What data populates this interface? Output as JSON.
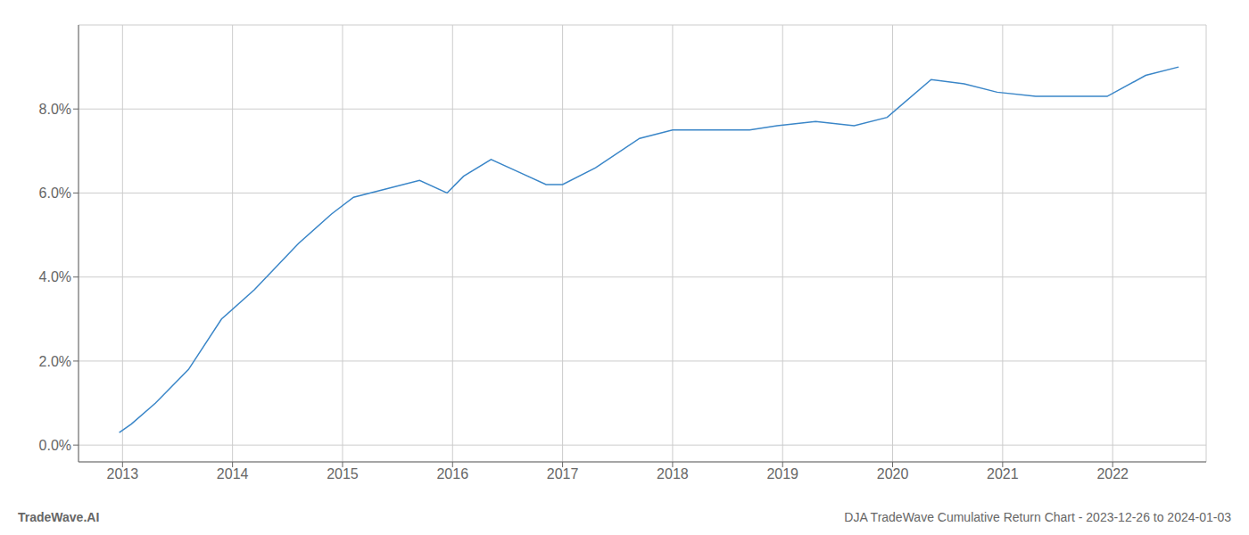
{
  "chart_data": {
    "type": "line",
    "x": [
      2012.97,
      2013.08,
      2013.3,
      2013.6,
      2013.9,
      2014.2,
      2014.6,
      2014.9,
      2015.1,
      2015.4,
      2015.7,
      2015.95,
      2016.1,
      2016.35,
      2016.6,
      2016.85,
      2017.0,
      2017.3,
      2017.7,
      2018.0,
      2018.35,
      2018.7,
      2018.95,
      2019.3,
      2019.65,
      2019.95,
      2020.35,
      2020.65,
      2020.95,
      2021.3,
      2021.65,
      2021.95,
      2022.3,
      2022.6
    ],
    "values": [
      0.003,
      0.005,
      0.01,
      0.018,
      0.03,
      0.037,
      0.048,
      0.055,
      0.059,
      0.061,
      0.063,
      0.06,
      0.064,
      0.068,
      0.065,
      0.062,
      0.062,
      0.066,
      0.073,
      0.075,
      0.075,
      0.075,
      0.076,
      0.077,
      0.076,
      0.078,
      0.087,
      0.086,
      0.084,
      0.083,
      0.083,
      0.083,
      0.088,
      0.09
    ],
    "color": "#3a86c8",
    "xlim": [
      2012.6,
      2022.85
    ],
    "xticks": [
      2013,
      2014,
      2015,
      2016,
      2017,
      2018,
      2019,
      2020,
      2021,
      2022
    ],
    "ylim": [
      -0.004,
      0.1
    ],
    "yticks": [
      {
        "value": 0.0,
        "label": "0.0%"
      },
      {
        "value": 0.02,
        "label": "2.0%"
      },
      {
        "value": 0.04,
        "label": "4.0%"
      },
      {
        "value": 0.06,
        "label": "6.0%"
      },
      {
        "value": 0.08,
        "label": "8.0%"
      }
    ],
    "grid": true,
    "annotations": [
      "TradeWave.AI",
      "DJA TradeWave Cumulative Return Chart - 2023-12-26 to 2024-01-03"
    ]
  }
}
